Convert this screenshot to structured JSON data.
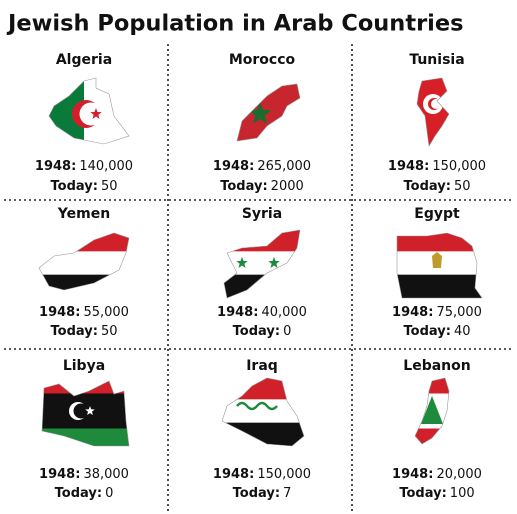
{
  "title": "Jewish Population in Arab Countries",
  "labels": {
    "then": "1948:",
    "today": "Today:"
  },
  "countries": [
    {
      "name": "Algeria",
      "then": "140,000",
      "today": "50"
    },
    {
      "name": "Morocco",
      "then": "265,000",
      "today": "2000"
    },
    {
      "name": "Tunisia",
      "then": "150,000",
      "today": "50"
    },
    {
      "name": "Yemen",
      "then": "55,000",
      "today": "50"
    },
    {
      "name": "Syria",
      "then": "40,000",
      "today": "0"
    },
    {
      "name": "Egypt",
      "then": "75,000",
      "today": "40"
    },
    {
      "name": "Libya",
      "then": "38,000",
      "today": "0"
    },
    {
      "name": "Iraq",
      "then": "150,000",
      "today": "7"
    },
    {
      "name": "Lebanon",
      "then": "20,000",
      "today": "100"
    }
  ]
}
